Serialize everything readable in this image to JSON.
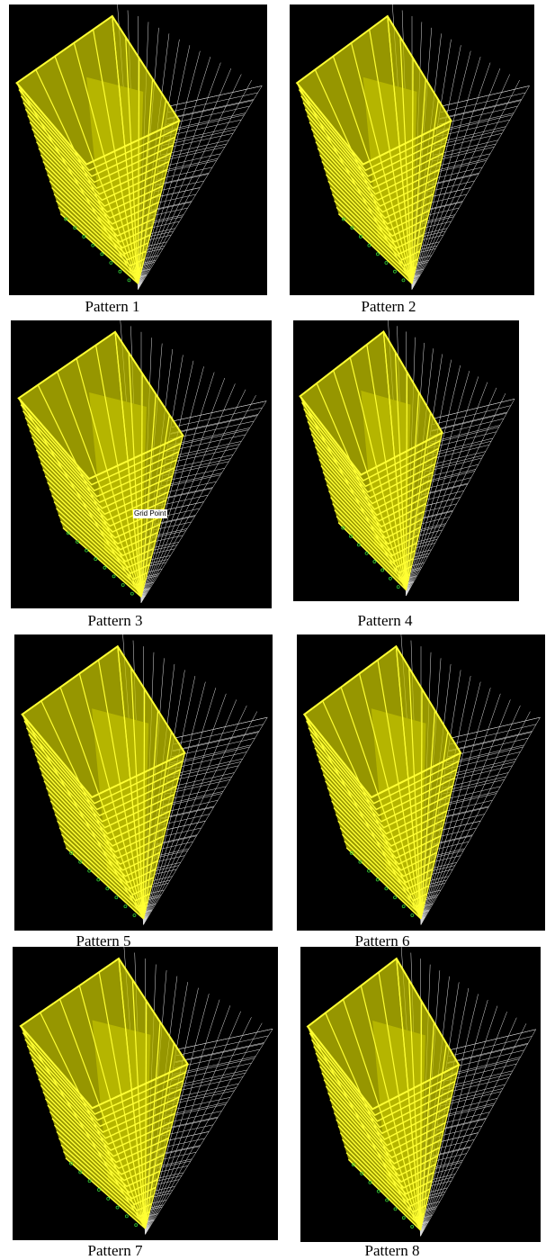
{
  "figure": {
    "panels": [
      {
        "caption": "Pattern 1"
      },
      {
        "caption": "Pattern 2"
      },
      {
        "caption": "Pattern 3",
        "annotation": "Grid Point"
      },
      {
        "caption": "Pattern 4"
      },
      {
        "caption": "Pattern 5"
      },
      {
        "caption": "Pattern 6"
      },
      {
        "caption": "Pattern 7"
      },
      {
        "caption": "Pattern 8"
      }
    ]
  }
}
